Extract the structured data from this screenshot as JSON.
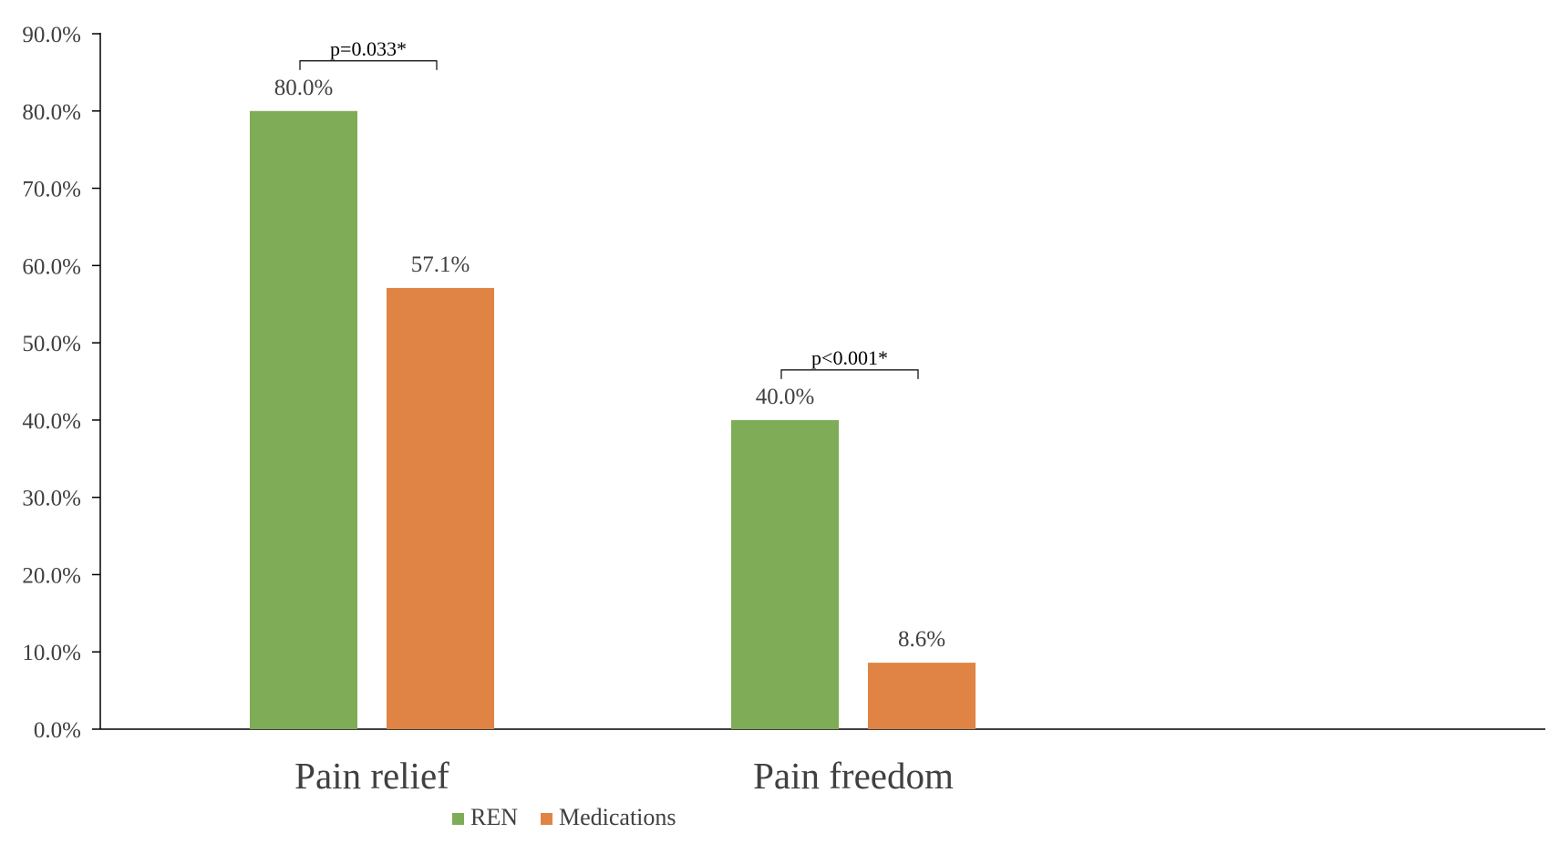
{
  "chart_data": {
    "type": "bar",
    "categories": [
      "Pain relief",
      "Pain freedom"
    ],
    "series": [
      {
        "name": "REN",
        "values": [
          80.0,
          40.0
        ],
        "labels": [
          "80.0%",
          "40.0%"
        ],
        "color": "#7fac56"
      },
      {
        "name": "Medications",
        "values": [
          57.1,
          8.6
        ],
        "labels": [
          "57.1%",
          "8.6%"
        ],
        "color": "#df8444"
      }
    ],
    "ylim": [
      0,
      90
    ],
    "yticks": [
      {
        "value": 0,
        "label": "0.0%"
      },
      {
        "value": 10,
        "label": "10.0%"
      },
      {
        "value": 20,
        "label": "20.0%"
      },
      {
        "value": 30,
        "label": "30.0%"
      },
      {
        "value": 40,
        "label": "40.0%"
      },
      {
        "value": 50,
        "label": "50.0%"
      },
      {
        "value": 60,
        "label": "60.0%"
      },
      {
        "value": 70,
        "label": "70.0%"
      },
      {
        "value": 80,
        "label": "80.0%"
      },
      {
        "value": 90,
        "label": "90.0%"
      }
    ],
    "annotations": [
      {
        "category": "Pain relief",
        "text": "p=0.033*"
      },
      {
        "category": "Pain freedom",
        "text": "p<0.001*"
      }
    ],
    "grid": false,
    "legend_position": "bottom",
    "title": "",
    "xlabel": "",
    "ylabel": ""
  }
}
